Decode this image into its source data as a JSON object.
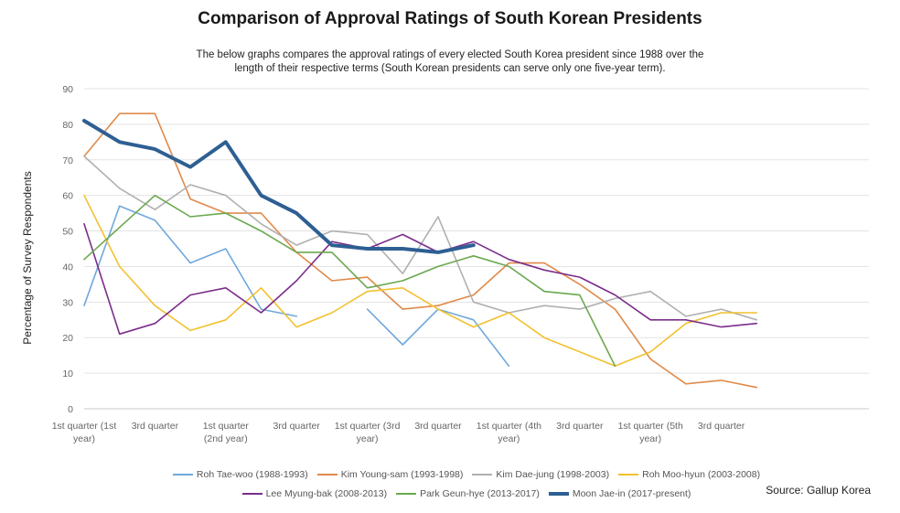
{
  "chart_data": {
    "type": "line",
    "title": "Comparison of Approval Ratings of South Korean Presidents",
    "subtitle_lines": [
      "The below graphs compares the approval ratings of every elected South Korea president since 1988 over the",
      "length of their respective terms (South Korean presidents can serve only one five-year term)."
    ],
    "ylabel": "Percentage of Survey Respondents",
    "ylim": [
      0,
      90
    ],
    "yticks": [
      0,
      10,
      20,
      30,
      40,
      50,
      60,
      70,
      80,
      90
    ],
    "grid": true,
    "legend_position": "bottom",
    "source": "Source: Gallup Korea",
    "x_tick_labels": [
      {
        "index": 0,
        "lines": [
          "1st quarter (1st",
          "year)"
        ]
      },
      {
        "index": 2,
        "lines": [
          "3rd quarter"
        ]
      },
      {
        "index": 4,
        "lines": [
          "1st quarter",
          "(2nd year)"
        ]
      },
      {
        "index": 6,
        "lines": [
          "3rd quarter"
        ]
      },
      {
        "index": 8,
        "lines": [
          "1st quarter (3rd",
          "year)"
        ]
      },
      {
        "index": 10,
        "lines": [
          "3rd quarter"
        ]
      },
      {
        "index": 12,
        "lines": [
          "1st quarter (4th",
          "year)"
        ]
      },
      {
        "index": 14,
        "lines": [
          "3rd quarter"
        ]
      },
      {
        "index": 16,
        "lines": [
          "1st quarter (5th",
          "year)"
        ]
      },
      {
        "index": 18,
        "lines": [
          "3rd quarter"
        ]
      }
    ],
    "series": [
      {
        "name": "Roh Tae-woo (1988-1993)",
        "color": "#6fa8dc",
        "width": 1.6,
        "values": [
          29,
          57,
          53,
          41,
          45,
          28,
          26,
          null,
          28,
          18,
          28,
          25,
          12
        ]
      },
      {
        "name": "Kim Young-sam (1993-1998)",
        "color": "#e08a4a",
        "width": 1.6,
        "values": [
          71,
          83,
          83,
          59,
          55,
          55,
          44,
          36,
          37,
          28,
          29,
          32,
          41,
          41,
          35,
          28,
          14,
          7,
          8,
          6
        ]
      },
      {
        "name": "Kim Dae-jung (1998-2003)",
        "color": "#b0b0b0",
        "width": 1.6,
        "values": [
          71,
          62,
          56,
          63,
          60,
          52,
          46,
          50,
          49,
          38,
          54,
          30,
          27,
          29,
          28,
          31,
          33,
          26,
          28,
          25
        ]
      },
      {
        "name": "Roh Moo-hyun (2003-2008)",
        "color": "#f2c12e",
        "width": 1.6,
        "values": [
          60,
          40,
          29,
          22,
          25,
          34,
          23,
          27,
          33,
          34,
          28,
          23,
          27,
          20,
          16,
          12,
          16,
          24,
          27,
          27
        ]
      },
      {
        "name": "Lee Myung-bak (2008-2013)",
        "color": "#7b2d8b",
        "width": 1.6,
        "values": [
          52,
          21,
          24,
          32,
          34,
          27,
          36,
          47,
          45,
          49,
          44,
          47,
          42,
          39,
          37,
          32,
          25,
          25,
          23,
          24
        ]
      },
      {
        "name": "Park Geun-hye (2013-2017)",
        "color": "#6aa84f",
        "width": 1.6,
        "values": [
          42,
          51,
          60,
          54,
          55,
          50,
          44,
          44,
          34,
          36,
          40,
          43,
          40,
          33,
          32,
          12
        ]
      },
      {
        "name": "Moon Jae-in (2017-present)",
        "color": "#2e5f93",
        "width": 4,
        "values": [
          81,
          75,
          73,
          68,
          75,
          60,
          55,
          46,
          45,
          45,
          44,
          46
        ]
      }
    ]
  }
}
